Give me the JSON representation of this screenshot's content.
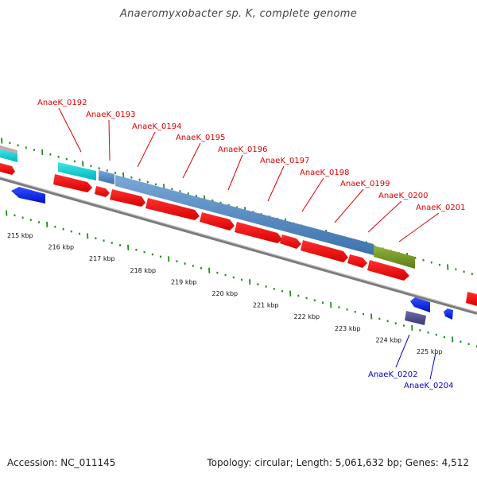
{
  "title": "Anaeromyxobacter sp. K, complete genome",
  "footer": {
    "accession": "Accession: NC_011145",
    "summary": "Topology: circular; Length: 5,061,632 bp; Genes: 4,512"
  },
  "colors": {
    "forward_label": "#dd0000",
    "reverse_label": "#0000cc",
    "backbone": "#808080",
    "tick": "#228b22"
  },
  "scale_labels": [
    "215 kbp",
    "216 kbp",
    "217 kbp",
    "218 kbp",
    "219 kbp",
    "220 kbp",
    "221 kbp",
    "222 kbp",
    "223 kbp",
    "224 kbp",
    "225 kbp"
  ],
  "gene_labels_top": [
    "AnaeK_0192",
    "AnaeK_0193",
    "AnaeK_0194",
    "AnaeK_0195",
    "AnaeK_0196",
    "AnaeK_0197",
    "AnaeK_0198",
    "AnaeK_0199",
    "AnaeK_0200",
    "AnaeK_0201"
  ],
  "gene_labels_bottom": [
    "AnaeK_0202",
    "AnaeK_0204"
  ]
}
